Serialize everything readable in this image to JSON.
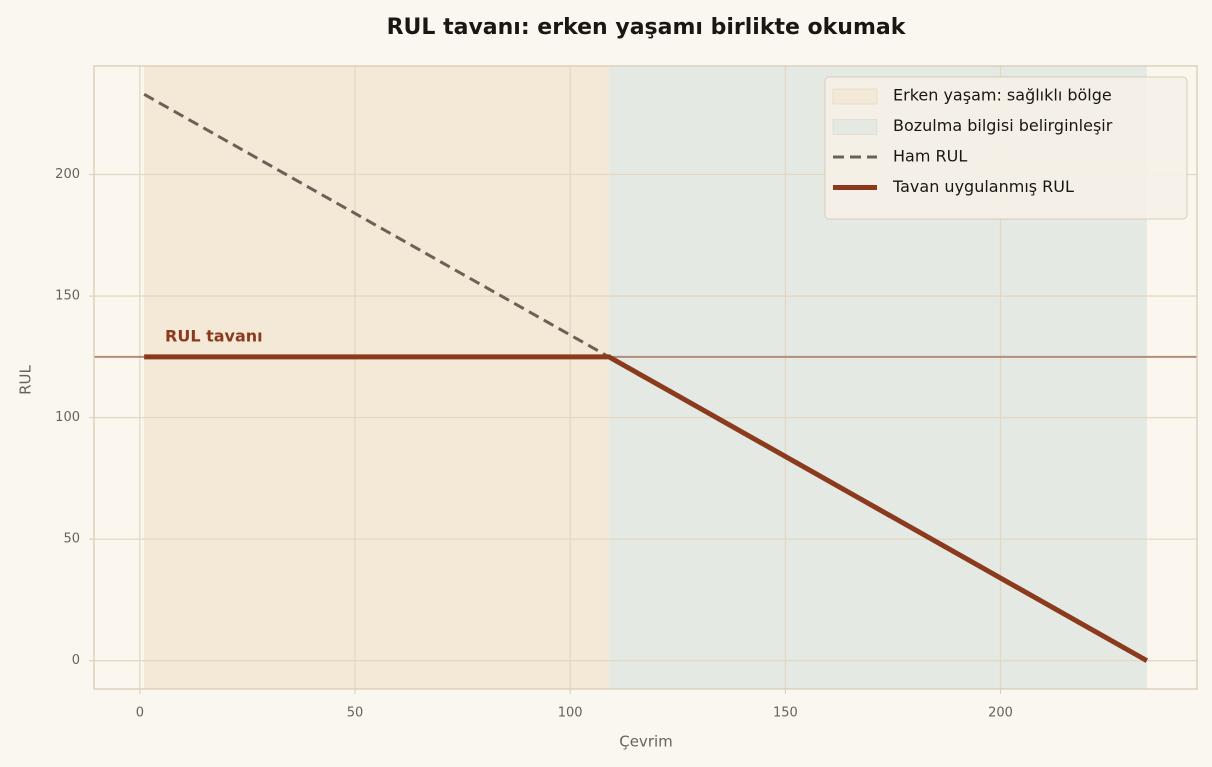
{
  "chart_data": {
    "type": "line",
    "title": "RUL tavanı: erken yaşamı birlikte okumak",
    "xlabel": "Çevrim",
    "ylabel": "RUL",
    "xlim": [
      -10.65,
      245.65
    ],
    "ylim": [
      -11.65,
      244.65
    ],
    "xticks": [
      0,
      50,
      100,
      150,
      200
    ],
    "yticks": [
      0,
      50,
      100,
      150,
      200
    ],
    "grid": true,
    "legend": "upper right",
    "spans": [
      {
        "name": "Erken yaşam: sağlıklı bölge",
        "color": "#f4e8d7",
        "x": [
          1,
          109
        ]
      },
      {
        "name": "Bozulma bilgisi belirginleşir",
        "color": "#e4e9e4",
        "x": [
          109,
          234
        ]
      }
    ],
    "series": [
      {
        "name": "Ham RUL",
        "color": "#6b6257",
        "dash": true,
        "x": [
          1,
          234
        ],
        "values": [
          233,
          0
        ]
      },
      {
        "name": "Tavan uygulanmış RUL",
        "color": "#8b3a1e",
        "x": [
          1,
          109,
          234
        ],
        "values": [
          125,
          125,
          0
        ]
      }
    ],
    "cap": {
      "value": 125,
      "label": "RUL tavanı",
      "color": "#b58c7b"
    }
  }
}
